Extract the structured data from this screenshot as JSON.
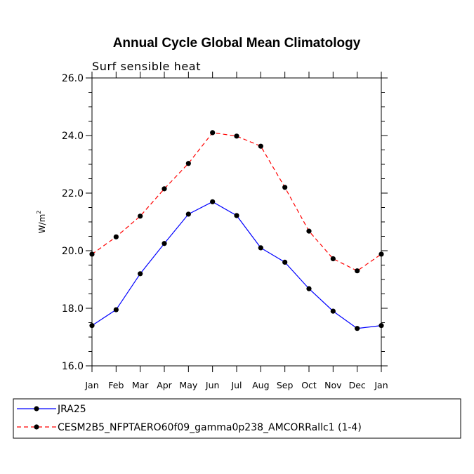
{
  "chart_data": {
    "type": "line",
    "title": "Annual Cycle Global Mean Climatology",
    "subtitle": "Surf sensible heat",
    "ylabel_base": "W/m",
    "ylabel_sup": "2",
    "xlabel": "",
    "ylim": [
      16,
      26
    ],
    "yticks": [
      "16.0",
      "18.0",
      "20.0",
      "22.0",
      "24.0",
      "26.0"
    ],
    "categories": [
      "Jan",
      "Feb",
      "Mar",
      "Apr",
      "May",
      "Jun",
      "Jul",
      "Aug",
      "Sep",
      "Oct",
      "Nov",
      "Dec",
      "Jan"
    ],
    "legend_position": "bottom",
    "series": [
      {
        "name": "JRA25",
        "color": "#0000ff",
        "dash": "solid",
        "values": [
          17.4,
          17.95,
          19.2,
          20.25,
          21.27,
          21.7,
          21.22,
          20.1,
          19.6,
          18.68,
          17.9,
          17.3,
          17.4
        ]
      },
      {
        "name": "CESM2B5_NFPTAERO60f09_gamma0p238_AMCORRallc1 (1-4)",
        "color": "#ff0000",
        "dash": "dashed",
        "values": [
          19.88,
          20.48,
          21.2,
          22.15,
          23.03,
          24.1,
          23.98,
          23.63,
          22.2,
          20.68,
          19.72,
          19.3,
          19.88
        ]
      }
    ]
  }
}
